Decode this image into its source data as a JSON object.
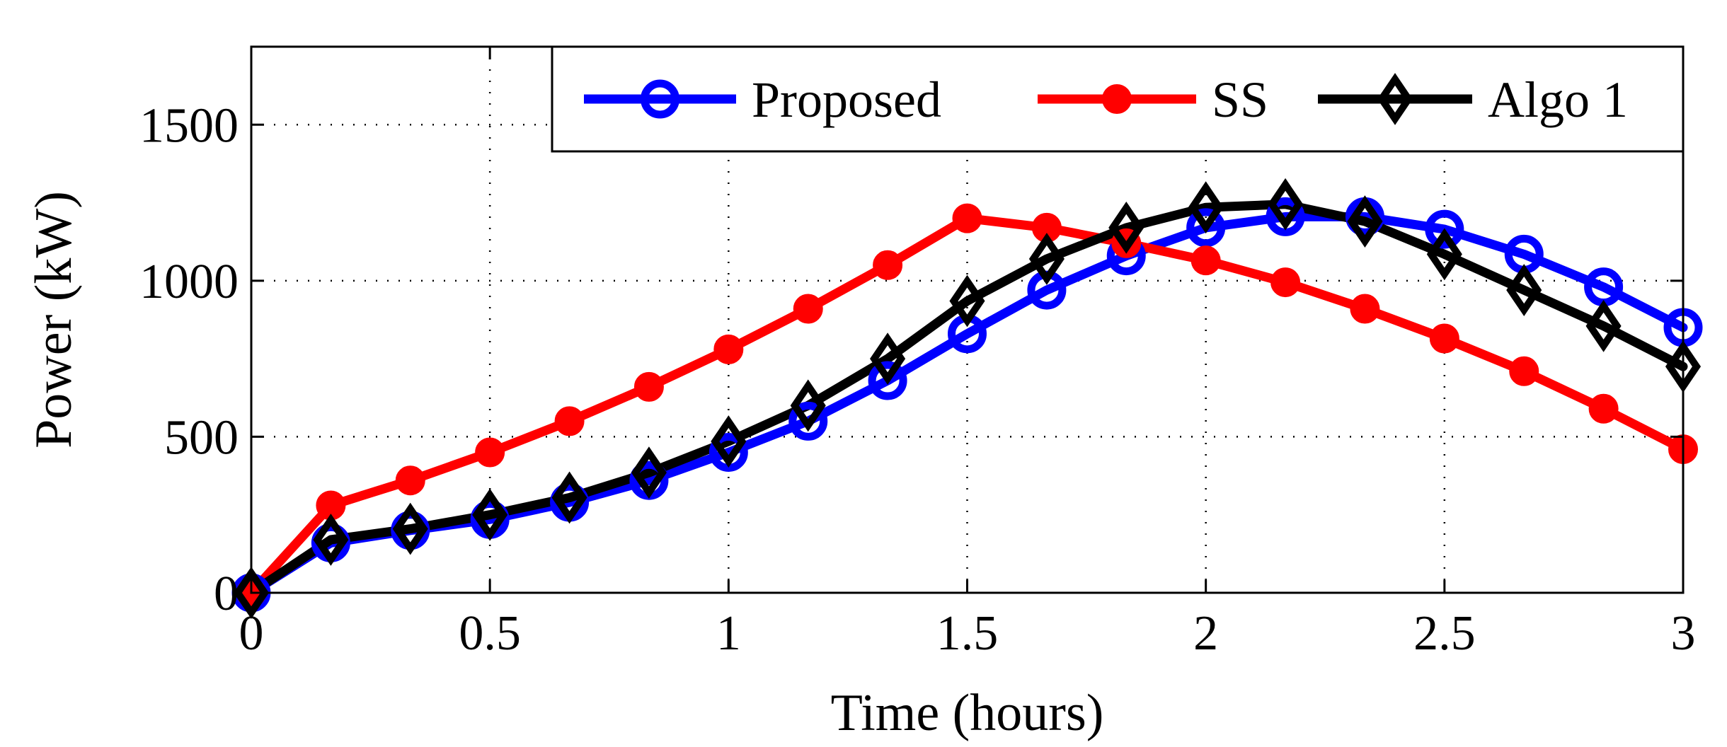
{
  "chart_data": {
    "type": "line",
    "title": "",
    "xlabel": "Time (hours)",
    "ylabel": "Power (kW)",
    "xlim": [
      0,
      3
    ],
    "ylim": [
      0,
      1750
    ],
    "grid": true,
    "legend_position": "top-right",
    "xticks": [
      0,
      0.5,
      1,
      1.5,
      2,
      2.5,
      3
    ],
    "xtick_labels": [
      "0",
      "0.5",
      "1",
      "1.5",
      "2",
      "2.5",
      "3"
    ],
    "yticks": [
      0,
      500,
      1000,
      1500
    ],
    "ytick_labels": [
      "0",
      "500",
      "1000",
      "1500"
    ],
    "x": [
      0,
      0.1667,
      0.3333,
      0.5,
      0.6667,
      0.8333,
      1.0,
      1.1667,
      1.3333,
      1.5,
      1.6667,
      1.8333,
      2.0,
      2.1667,
      2.3333,
      2.5,
      2.6667,
      2.8333,
      3.0
    ],
    "series": [
      {
        "name": "Proposed",
        "color": "#0000ff",
        "marker": "circle-open",
        "values": [
          0,
          160,
          200,
          235,
          290,
          360,
          450,
          550,
          680,
          830,
          970,
          1080,
          1170,
          1205,
          1205,
          1165,
          1085,
          980,
          850
        ]
      },
      {
        "name": "SS",
        "color": "#ff0000",
        "marker": "circle-filled",
        "values": [
          0,
          280,
          360,
          450,
          550,
          660,
          780,
          910,
          1050,
          1200,
          1170,
          1120,
          1065,
          995,
          910,
          815,
          710,
          590,
          460
        ]
      },
      {
        "name": "Algo 1",
        "color": "#000000",
        "marker": "diamond-open",
        "values": [
          0,
          170,
          205,
          250,
          305,
          385,
          485,
          600,
          750,
          935,
          1070,
          1170,
          1235,
          1245,
          1190,
          1085,
          970,
          855,
          725
        ]
      }
    ]
  }
}
